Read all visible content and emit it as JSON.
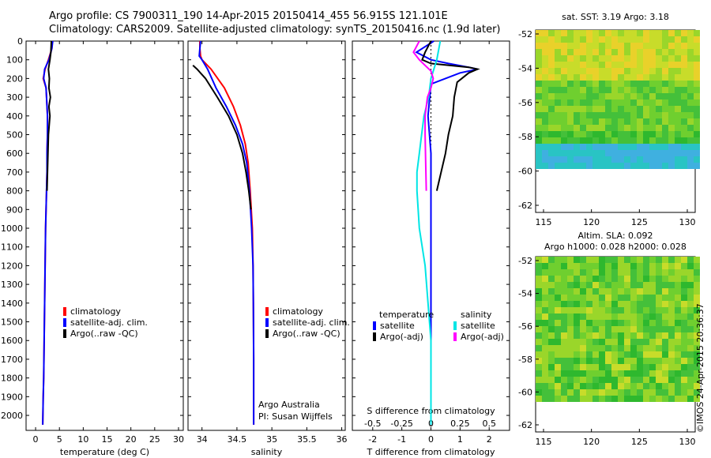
{
  "header": {
    "line1": "Argo profile: CS 7900311_190 14-Apr-2015 20150414_455 56.915S 121.101E",
    "line2": "Climatology: CARS2009. Satellite-adjusted climatology: synTS_20150416.nc (1.9d later)"
  },
  "colors": {
    "climatology": "#ff0000",
    "satellite": "#0000ff",
    "argo": "#000000",
    "sat_diff_s": "#00e5e5",
    "argo_diff_s": "#ff00ff"
  },
  "legend_profile": [
    "climatology",
    "satellite-adj. clim.",
    "Argo(..raw -QC)"
  ],
  "legend_diff": {
    "temperature": "temperature",
    "salinity": "salinity",
    "satellite": "satellite",
    "argo": "Argo(-adj)"
  },
  "credit": {
    "line1": "Argo Australia",
    "line2": "PI: Susan Wijffels"
  },
  "diff_title_top": "S difference from climatology",
  "map_sst": {
    "title": "sat. SST: 3.19 Argo: 3.18",
    "xticks": [
      "115",
      "120",
      "125",
      "130"
    ],
    "yticks": [
      "-52",
      "-54",
      "-56",
      "-58",
      "-60",
      "-62"
    ]
  },
  "map_sla": {
    "title1": "Altim. SLA: 0.092",
    "title2": "Argo h1000: 0.028 h2000: 0.028",
    "xticks": [
      "115",
      "120",
      "125",
      "130"
    ],
    "yticks": [
      "-52",
      "-54",
      "-56",
      "-58",
      "-60",
      "-62"
    ]
  },
  "watermark": "©IMOS 24-Apr-2015 20:36:37",
  "chart_data": [
    {
      "type": "line",
      "xlabel": "temperature (deg C)",
      "ylabel": "",
      "xlim": [
        -2,
        31
      ],
      "ylim": [
        2080,
        0
      ],
      "xticks": [
        0,
        5,
        10,
        15,
        20,
        25,
        30
      ],
      "yticks": [
        0,
        100,
        200,
        300,
        400,
        500,
        600,
        700,
        800,
        900,
        1000,
        1100,
        1200,
        1300,
        1400,
        1500,
        1600,
        1700,
        1800,
        1900,
        2000
      ],
      "series": [
        {
          "name": "climatology",
          "x": [
            3.5,
            3.4,
            2.7,
            2.0,
            1.6,
            2.2,
            2.5,
            2.5,
            2.4,
            2.4,
            2.3,
            2.2,
            2.1,
            2.0,
            1.9,
            1.8,
            1.7,
            1.6,
            1.5
          ],
          "y": [
            0,
            40,
            100,
            150,
            200,
            250,
            400,
            500,
            600,
            700,
            800,
            900,
            1000,
            1200,
            1400,
            1600,
            1800,
            1900,
            2050
          ]
        },
        {
          "name": "satellite-adj. clim.",
          "x": [
            3.6,
            3.4,
            2.8,
            1.9,
            1.7,
            2.2,
            2.5,
            2.5,
            2.4,
            2.4,
            2.3,
            2.2,
            2.1,
            2.0,
            1.9,
            1.8,
            1.7,
            1.6,
            1.5
          ],
          "y": [
            0,
            40,
            100,
            150,
            200,
            250,
            400,
            500,
            600,
            700,
            800,
            900,
            1000,
            1200,
            1400,
            1600,
            1800,
            1900,
            2050
          ]
        },
        {
          "name": "Argo(..raw -QC)",
          "x": [
            3.3,
            3.2,
            3.0,
            2.7,
            2.9,
            2.8,
            3.1,
            2.8,
            3.0,
            2.7,
            2.6,
            2.5,
            2.4
          ],
          "y": [
            0,
            60,
            100,
            150,
            200,
            250,
            300,
            350,
            400,
            500,
            600,
            700,
            800
          ]
        }
      ]
    },
    {
      "type": "line",
      "xlabel": "salinity",
      "ylabel": "",
      "xlim": [
        33.8,
        36.05
      ],
      "ylim": [
        2080,
        0
      ],
      "xticks": [
        34,
        34.5,
        35,
        35.5,
        36
      ],
      "series": [
        {
          "name": "climatology",
          "x": [
            33.97,
            33.97,
            33.98,
            34.0,
            34.13,
            34.32,
            34.45,
            34.55,
            34.62,
            34.66,
            34.69,
            34.72,
            34.73,
            34.735,
            34.74,
            34.74
          ],
          "y": [
            0,
            40,
            80,
            100,
            150,
            250,
            350,
            450,
            550,
            650,
            800,
            1000,
            1200,
            1400,
            1700,
            2050
          ]
        },
        {
          "name": "satellite-adj. clim.",
          "x": [
            33.98,
            33.97,
            33.96,
            34.0,
            34.08,
            34.2,
            34.35,
            34.48,
            34.58,
            34.64,
            34.68,
            34.71,
            34.73,
            34.735,
            34.74,
            34.74
          ],
          "y": [
            0,
            40,
            80,
            100,
            150,
            250,
            350,
            450,
            550,
            650,
            800,
            1000,
            1200,
            1400,
            1700,
            2050
          ]
        },
        {
          "name": "Argo(..raw -QC)",
          "x": [
            33.87,
            33.93,
            34.05,
            34.22,
            34.38,
            34.5,
            34.58,
            34.63,
            34.67,
            34.7
          ],
          "y": [
            130,
            150,
            200,
            300,
            400,
            500,
            600,
            700,
            800,
            900
          ]
        }
      ]
    },
    {
      "type": "line",
      "xlabel": "T difference from climatology",
      "xlabel_top": "S difference from climatology",
      "ylabel": "",
      "xlim": [
        -2.7,
        2.7
      ],
      "ylim": [
        2080,
        0
      ],
      "xticks": [
        -2,
        -1,
        0,
        1,
        2
      ],
      "xticks_top": [
        -0.5,
        -0.25,
        0,
        0.25,
        0.5
      ],
      "series": [
        {
          "name": "satellite",
          "quantity": "temperature",
          "x": [
            0.1,
            -0.5,
            0.0,
            0.6,
            1.3,
            1.6,
            1.0,
            0.0,
            -0.1,
            0.0,
            0.0,
            0.0,
            0.0,
            0.0
          ],
          "y": [
            0,
            60,
            100,
            120,
            140,
            150,
            170,
            230,
            400,
            600,
            800,
            1200,
            1600,
            2050
          ]
        },
        {
          "name": "Argo(-adj)",
          "quantity": "temperature",
          "x": [
            0.0,
            -0.2,
            -0.3,
            0.0,
            1.3,
            1.6,
            1.3,
            0.9,
            0.8,
            0.75,
            0.6,
            0.5,
            0.35,
            0.2
          ],
          "y": [
            0,
            60,
            100,
            120,
            140,
            150,
            170,
            220,
            300,
            400,
            500,
            600,
            700,
            800
          ]
        },
        {
          "name": "satellite",
          "quantity": "salinity",
          "x": [
            0.08,
            0.05,
            0.0,
            -0.02,
            -0.06,
            -0.08,
            -0.1,
            -0.12,
            -0.12,
            -0.1,
            -0.05,
            0.0,
            0.0
          ],
          "y": [
            0,
            100,
            200,
            300,
            400,
            500,
            600,
            700,
            800,
            1000,
            1200,
            1600,
            2050
          ]
        },
        {
          "name": "Argo(-adj)",
          "quantity": "salinity",
          "x": [
            -0.1,
            -0.15,
            -0.1,
            -0.05,
            0.0,
            0.02,
            0.0,
            -0.03,
            -0.05,
            -0.05,
            -0.04
          ],
          "y": [
            0,
            60,
            100,
            130,
            160,
            200,
            250,
            300,
            400,
            500,
            800
          ]
        }
      ]
    }
  ]
}
